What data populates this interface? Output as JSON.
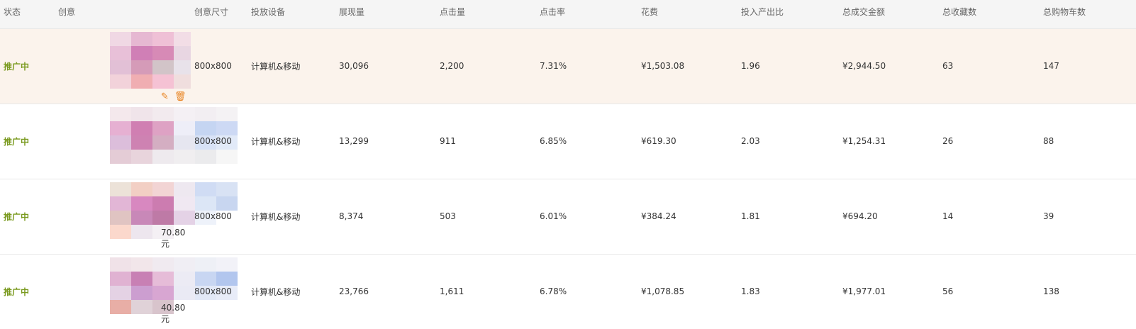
{
  "columns": [
    "状态",
    "创意",
    "创意尺寸",
    "投放设备",
    "展现量",
    "点击量",
    "点击率",
    "花费",
    "投入产出比",
    "总成交金额",
    "总收藏数",
    "总购物车数"
  ],
  "rows": [
    {
      "status": "推广中",
      "price": "",
      "size": "800x800",
      "device": "计算机&移动",
      "impressions": "30,096",
      "clicks": "2,200",
      "ctr": "7.31%",
      "cost": "¥1,503.08",
      "roi": "1.96",
      "gmv": "¥2,944.50",
      "favorites": "63",
      "carts": "147",
      "highlighted": true
    },
    {
      "status": "推广中",
      "price": "",
      "size": "800x800",
      "device": "计算机&移动",
      "impressions": "13,299",
      "clicks": "911",
      "ctr": "6.85%",
      "cost": "¥619.30",
      "roi": "2.03",
      "gmv": "¥1,254.31",
      "favorites": "26",
      "carts": "88"
    },
    {
      "status": "推广中",
      "price": "70.80元",
      "size": "800x800",
      "device": "计算机&移动",
      "impressions": "8,374",
      "clicks": "503",
      "ctr": "6.01%",
      "cost": "¥384.24",
      "roi": "1.81",
      "gmv": "¥694.20",
      "favorites": "14",
      "carts": "39"
    },
    {
      "status": "推广中",
      "price": "40.80元",
      "size": "800x800",
      "device": "计算机&移动",
      "impressions": "23,766",
      "clicks": "1,611",
      "ctr": "6.78%",
      "cost": "¥1,078.85",
      "roi": "1.83",
      "gmv": "¥1,977.01",
      "favorites": "56",
      "carts": "138"
    }
  ],
  "row_actions": [
    "edit-icon",
    "delete-icon",
    "preview-icon"
  ],
  "colors": {
    "status": "#7a9a1f",
    "action": "#e8821e",
    "highlight_row": "#fbf3ec"
  }
}
